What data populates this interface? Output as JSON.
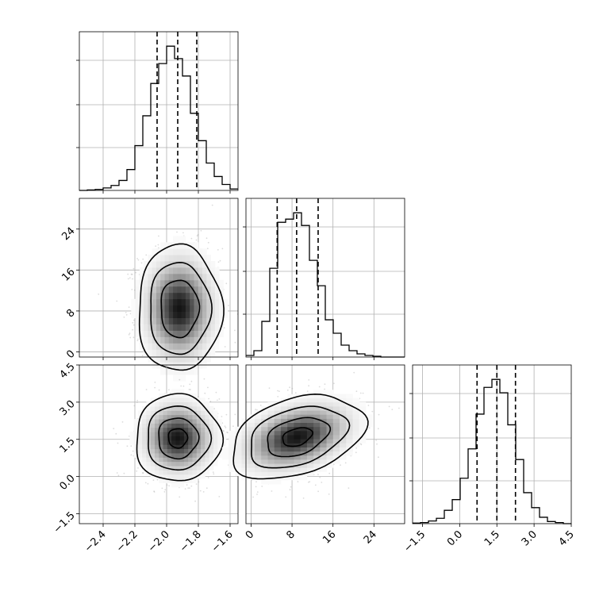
{
  "chart_data": {
    "type": "corner",
    "params": [
      {
        "id": "p0",
        "range": [
          -2.55,
          -1.55
        ],
        "ticks": [
          -2.4,
          -2.2,
          -2.0,
          -1.8,
          -1.6
        ],
        "tick_labels": [
          "−2.4",
          "−2.2",
          "−2.0",
          "−1.8",
          "−1.6"
        ],
        "quantiles": [
          -2.06,
          -1.93,
          -1.81
        ],
        "hist": {
          "edges": [
            -2.55,
            -2.5,
            -2.45,
            -2.4,
            -2.35,
            -2.3,
            -2.25,
            -2.2,
            -2.15,
            -2.1,
            -2.05,
            -2.0,
            -1.95,
            -1.9,
            -1.85,
            -1.8,
            -1.75,
            -1.7,
            -1.65,
            -1.6,
            -1.55
          ],
          "counts": [
            0,
            1,
            2,
            5,
            10,
            20,
            42,
            90,
            150,
            215,
            255,
            290,
            265,
            230,
            155,
            100,
            55,
            28,
            12,
            3
          ]
        }
      },
      {
        "id": "p1",
        "range": [
          -1,
          30
        ],
        "ticks": [
          0,
          8,
          16,
          24
        ],
        "tick_labels": [
          "0",
          "8",
          "16",
          "24"
        ],
        "quantiles": [
          5.1,
          8.9,
          13.1
        ],
        "hist": {
          "edges": [
            -1,
            0.55,
            2.1,
            3.65,
            5.2,
            6.75,
            8.3,
            9.85,
            11.4,
            12.95,
            14.5,
            16.05,
            17.6,
            19.15,
            20.7,
            22.25,
            23.8,
            25.35,
            26.9,
            28.45,
            30
          ],
          "counts": [
            2,
            8,
            45,
            112,
            170,
            174,
            182,
            166,
            122,
            90,
            47,
            30,
            15,
            8,
            4,
            2,
            1,
            0,
            0,
            0
          ]
        }
      },
      {
        "id": "p2",
        "range": [
          -1.9,
          4.5
        ],
        "ticks": [
          -1.5,
          0.0,
          1.5,
          3.0,
          4.5
        ],
        "tick_labels": [
          "−1.5",
          "0.0",
          "1.5",
          "3.0",
          "4.5"
        ],
        "quantiles": [
          0.7,
          1.5,
          2.25
        ],
        "hist": {
          "edges": [
            -1.9,
            -1.58,
            -1.26,
            -0.94,
            -0.62,
            -0.3,
            0.02,
            0.34,
            0.66,
            0.98,
            1.3,
            1.62,
            1.94,
            2.26,
            2.58,
            2.9,
            3.22,
            3.54,
            3.86,
            4.18,
            4.5
          ],
          "counts": [
            1,
            2,
            5,
            10,
            25,
            45,
            85,
            140,
            205,
            255,
            270,
            245,
            185,
            120,
            58,
            30,
            12,
            4,
            2,
            0
          ]
        }
      }
    ],
    "pairs": [
      {
        "x": "p0",
        "y": "p1",
        "center": [
          -1.92,
          8.5
        ],
        "sd": [
          0.12,
          5.6
        ],
        "corr": 0.0,
        "peak": [
          -1.93,
          6.5
        ],
        "contour_scale": [
          1.0,
          1.6,
          2.2
        ]
      },
      {
        "x": "p0",
        "y": "p2",
        "center": [
          -1.93,
          1.55
        ],
        "sd": [
          0.12,
          0.78
        ],
        "corr": 0.0,
        "peak": [
          -1.92,
          1.5
        ],
        "contour_scale": [
          0.5,
          1.05,
          1.65,
          2.25
        ]
      },
      {
        "x": "p1",
        "y": "p2",
        "center": [
          9.0,
          1.6
        ],
        "sd": [
          5.8,
          0.75
        ],
        "corr": 0.35,
        "peak": [
          8.0,
          1.45
        ],
        "contour_scale": [
          0.5,
          1.05,
          1.65,
          2.25
        ]
      }
    ],
    "contour_color": "#000000",
    "point_color": "#9a9a9a",
    "grid": true,
    "title": "",
    "legend": ""
  }
}
